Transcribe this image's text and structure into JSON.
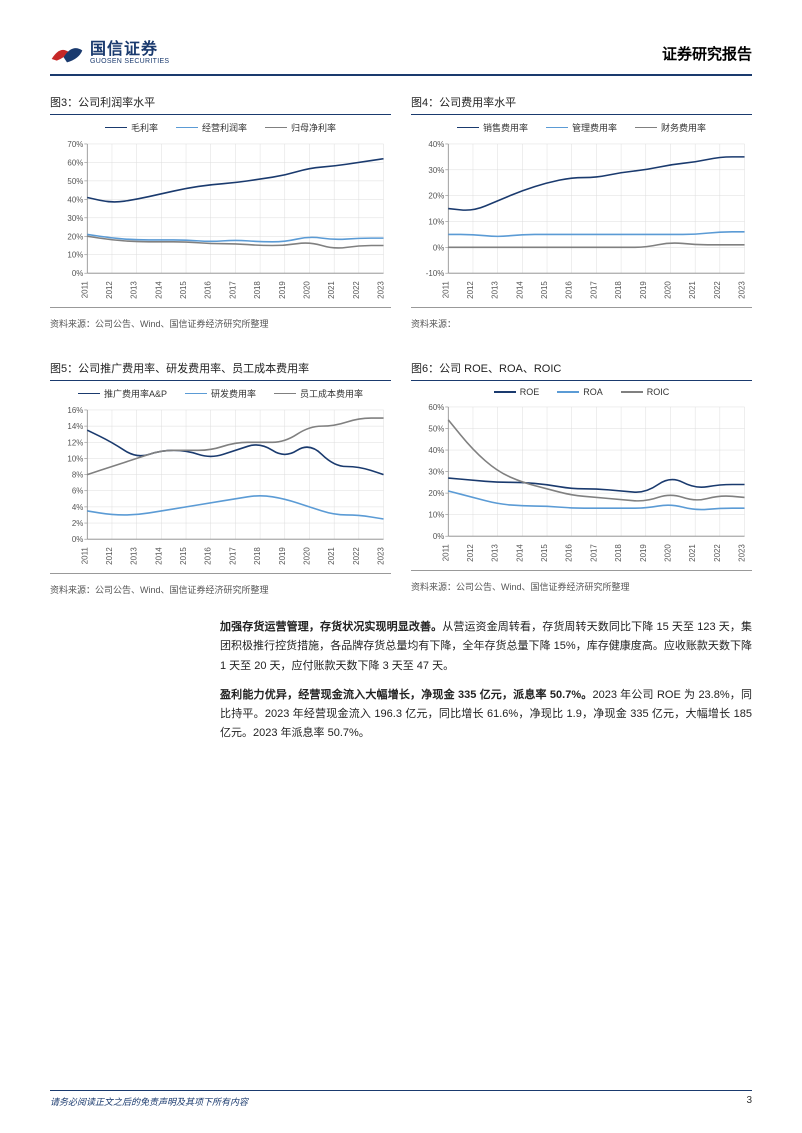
{
  "header": {
    "company_cn": "国信证券",
    "company_en": "GUOSEN SECURITIES",
    "report_title": "证券研究报告"
  },
  "charts": {
    "chart3": {
      "title": "图3：公司利润率水平",
      "type": "line",
      "legend": [
        {
          "label": "毛利率",
          "color": "#1a3a6e"
        },
        {
          "label": "经营利润率",
          "color": "#5b9bd5"
        },
        {
          "label": "归母净利率",
          "color": "#808080"
        }
      ],
      "categories": [
        "2011",
        "2012",
        "2013",
        "2014",
        "2015",
        "2016",
        "2017",
        "2018",
        "2019",
        "2020",
        "2021",
        "2022",
        "2023"
      ],
      "series": [
        {
          "name": "毛利率",
          "color": "#1a3a6e",
          "values": [
            41,
            38,
            40,
            43,
            46,
            48,
            49,
            51,
            53,
            57,
            58,
            60,
            62
          ]
        },
        {
          "name": "经营利润率",
          "color": "#5b9bd5",
          "values": [
            21,
            19,
            18,
            18,
            18,
            17,
            18,
            17,
            17,
            20,
            18,
            19,
            19
          ]
        },
        {
          "name": "归母净利率",
          "color": "#808080",
          "values": [
            20,
            18,
            17,
            17,
            17,
            16,
            16,
            15,
            15,
            17,
            13,
            15,
            15
          ]
        }
      ],
      "ylim": [
        0,
        70
      ],
      "ytick_step": 10,
      "y_format": "percent",
      "source": "资料来源：公司公告、Wind、国信证券经济研究所整理"
    },
    "chart4": {
      "title": "图4：公司费用率水平",
      "type": "line",
      "legend": [
        {
          "label": "销售费用率",
          "color": "#1a3a6e"
        },
        {
          "label": "管理费用率",
          "color": "#5b9bd5"
        },
        {
          "label": "财务费用率",
          "color": "#808080"
        }
      ],
      "categories": [
        "2011",
        "2012",
        "2013",
        "2014",
        "2015",
        "2016",
        "2017",
        "2018",
        "2019",
        "2020",
        "2021",
        "2022",
        "2023"
      ],
      "series": [
        {
          "name": "销售费用率",
          "color": "#1a3a6e",
          "values": [
            15,
            14,
            18,
            22,
            25,
            27,
            27,
            29,
            30,
            32,
            33,
            35,
            35
          ]
        },
        {
          "name": "管理费用率",
          "color": "#5b9bd5",
          "values": [
            5,
            5,
            4,
            5,
            5,
            5,
            5,
            5,
            5,
            5,
            5,
            6,
            6
          ]
        },
        {
          "name": "财务费用率",
          "color": "#808080",
          "values": [
            0,
            0,
            0,
            0,
            0,
            0,
            0,
            0,
            0,
            2,
            1,
            1,
            1
          ]
        }
      ],
      "ylim": [
        -10,
        40
      ],
      "ytick_step": 10,
      "y_format": "percent",
      "source": "资料来源："
    },
    "chart5": {
      "title": "图5：公司推广费用率、研发费用率、员工成本费用率",
      "type": "line",
      "legend": [
        {
          "label": "推广费用率A&P",
          "color": "#1a3a6e"
        },
        {
          "label": "研发费用率",
          "color": "#5b9bd5"
        },
        {
          "label": "员工成本费用率",
          "color": "#808080"
        }
      ],
      "categories": [
        "2011",
        "2012",
        "2013",
        "2014",
        "2015",
        "2016",
        "2017",
        "2018",
        "2019",
        "2020",
        "2021",
        "2022",
        "2023"
      ],
      "series": [
        {
          "name": "推广费用率A&P",
          "color": "#1a3a6e",
          "values": [
            13.5,
            12,
            10,
            11,
            11,
            10,
            11,
            12,
            10,
            12,
            9,
            9,
            8
          ]
        },
        {
          "name": "研发费用率",
          "color": "#5b9bd5",
          "values": [
            3.5,
            3,
            3,
            3.5,
            4,
            4.5,
            5,
            5.5,
            5,
            4,
            3,
            3,
            2.5
          ]
        },
        {
          "name": "员工成本费用率",
          "color": "#808080",
          "values": [
            8,
            9,
            10,
            11,
            11,
            11,
            12,
            12,
            12,
            14,
            14,
            15,
            15
          ]
        }
      ],
      "ylim": [
        0,
        16
      ],
      "ytick_step": 2,
      "y_format": "percent",
      "source": "资料来源：公司公告、Wind、国信证券经济研究所整理"
    },
    "chart6": {
      "title": "图6：公司 ROE、ROA、ROIC",
      "type": "line",
      "legend": [
        {
          "label": "ROE",
          "color": "#1a3a6e"
        },
        {
          "label": "ROA",
          "color": "#5b9bd5"
        },
        {
          "label": "ROIC",
          "color": "#808080"
        }
      ],
      "categories": [
        "2011",
        "2012",
        "2013",
        "2014",
        "2015",
        "2016",
        "2017",
        "2018",
        "2019",
        "2020",
        "2021",
        "2022",
        "2023"
      ],
      "series": [
        {
          "name": "ROE",
          "color": "#1a3a6e",
          "values": [
            27,
            26,
            25,
            25,
            24,
            22,
            22,
            21,
            20,
            28,
            22,
            24,
            24
          ]
        },
        {
          "name": "ROA",
          "color": "#5b9bd5",
          "values": [
            21,
            18,
            15,
            14,
            14,
            13,
            13,
            13,
            13,
            15,
            12,
            13,
            13
          ]
        },
        {
          "name": "ROIC",
          "color": "#808080",
          "values": [
            54,
            40,
            30,
            25,
            22,
            19,
            18,
            17,
            16,
            20,
            16,
            19,
            18
          ]
        }
      ],
      "ylim": [
        0,
        60
      ],
      "ytick_step": 10,
      "y_format": "percent",
      "source": "资料来源：公司公告、Wind、国信证券经济研究所整理"
    }
  },
  "paragraphs": {
    "p1_bold": "加强存货运营管理，存货状况实现明显改善。",
    "p1_rest": "从营运资金周转看，存货周转天数同比下降 15 天至 123 天，集团积极推行控货措施，各品牌存货总量均有下降，全年存货总量下降 15%，库存健康度高。应收账款天数下降 1 天至 20 天，应付账款天数下降 3 天至 47 天。",
    "p2_bold": "盈利能力优异，经营现金流入大幅增长，净现金 335 亿元，派息率 50.7%。",
    "p2_rest": "2023 年公司 ROE 为 23.8%，同比持平。2023 年经营现金流入 196.3 亿元，同比增长 61.6%，净现比 1.9，净现金 335 亿元，大幅增长 185 亿元。2023 年派息率 50.7%。"
  },
  "footer": {
    "disclaimer": "请务必阅读正文之后的免责声明及其项下所有内容",
    "page": "3"
  }
}
